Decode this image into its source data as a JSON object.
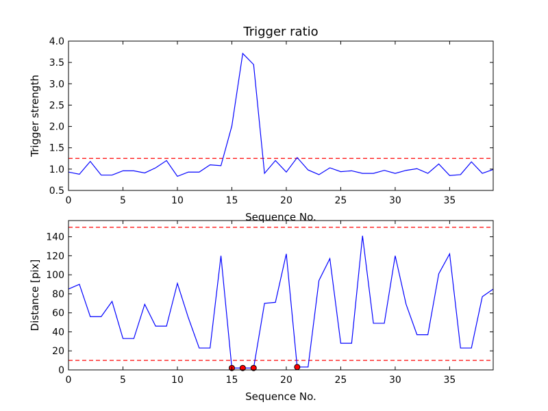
{
  "chart_data": [
    {
      "type": "line",
      "title": "Trigger ratio",
      "xlabel": "Sequence No.",
      "ylabel": "Trigger strength",
      "xlim": [
        0,
        39
      ],
      "ylim": [
        0.5,
        4.0
      ],
      "xticks": [
        "0",
        "5",
        "10",
        "15",
        "20",
        "25",
        "30",
        "35"
      ],
      "yticks": [
        "0.5",
        "1.0",
        "1.5",
        "2.0",
        "2.5",
        "3.0",
        "3.5",
        "4.0"
      ],
      "grid": false,
      "series": [
        {
          "color": "#0000ff",
          "x": [
            0,
            1,
            2,
            3,
            4,
            5,
            6,
            7,
            8,
            9,
            10,
            11,
            12,
            13,
            14,
            15,
            16,
            17,
            18,
            19,
            20,
            21,
            22,
            23,
            24,
            25,
            26,
            27,
            28,
            29,
            30,
            31,
            32,
            33,
            34,
            35,
            36,
            37,
            38,
            39
          ],
          "values": [
            0.93,
            0.88,
            1.18,
            0.86,
            0.86,
            0.96,
            0.96,
            0.91,
            1.03,
            1.2,
            0.83,
            0.93,
            0.93,
            1.1,
            1.08,
            2.01,
            3.71,
            3.45,
            0.9,
            1.2,
            0.93,
            1.27,
            0.98,
            0.87,
            1.03,
            0.94,
            0.96,
            0.9,
            0.9,
            0.97,
            0.9,
            0.97,
            1.01,
            0.9,
            1.12,
            0.85,
            0.87,
            1.17,
            0.9,
            0.99
          ]
        }
      ],
      "reference_lines": [
        {
          "y": 1.25,
          "color": "#ff0000",
          "style": "dashed"
        }
      ]
    },
    {
      "type": "line",
      "title": "",
      "xlabel": "Sequence No.",
      "ylabel": "Distance [pix]",
      "xlim": [
        0,
        39
      ],
      "ylim": [
        0,
        157
      ],
      "xticks": [
        "0",
        "5",
        "10",
        "15",
        "20",
        "25",
        "30",
        "35"
      ],
      "yticks": [
        "0",
        "20",
        "40",
        "60",
        "80",
        "100",
        "120",
        "140"
      ],
      "grid": false,
      "series": [
        {
          "color": "#0000ff",
          "x": [
            0,
            1,
            2,
            3,
            4,
            5,
            6,
            7,
            8,
            9,
            10,
            11,
            12,
            13,
            14,
            15,
            16,
            17,
            18,
            19,
            20,
            21,
            22,
            23,
            24,
            25,
            26,
            27,
            28,
            29,
            30,
            31,
            32,
            33,
            34,
            35,
            36,
            37,
            38,
            39
          ],
          "values": [
            85,
            90,
            56,
            56,
            72,
            33,
            33,
            69,
            46,
            46,
            91,
            55,
            23,
            23,
            120,
            2,
            2,
            2,
            70,
            71,
            122,
            3,
            3,
            94,
            117,
            28,
            28,
            141,
            49,
            49,
            120,
            69,
            37,
            37,
            101,
            122,
            23,
            23,
            77,
            85
          ]
        }
      ],
      "highlighted_points": {
        "color": "#ff0000",
        "x": [
          15,
          16,
          17,
          21
        ],
        "values": [
          2,
          2,
          2,
          3
        ]
      },
      "reference_lines": [
        {
          "y": 150,
          "color": "#ff0000",
          "style": "dashed"
        },
        {
          "y": 10,
          "color": "#ff0000",
          "style": "dashed"
        }
      ]
    }
  ]
}
